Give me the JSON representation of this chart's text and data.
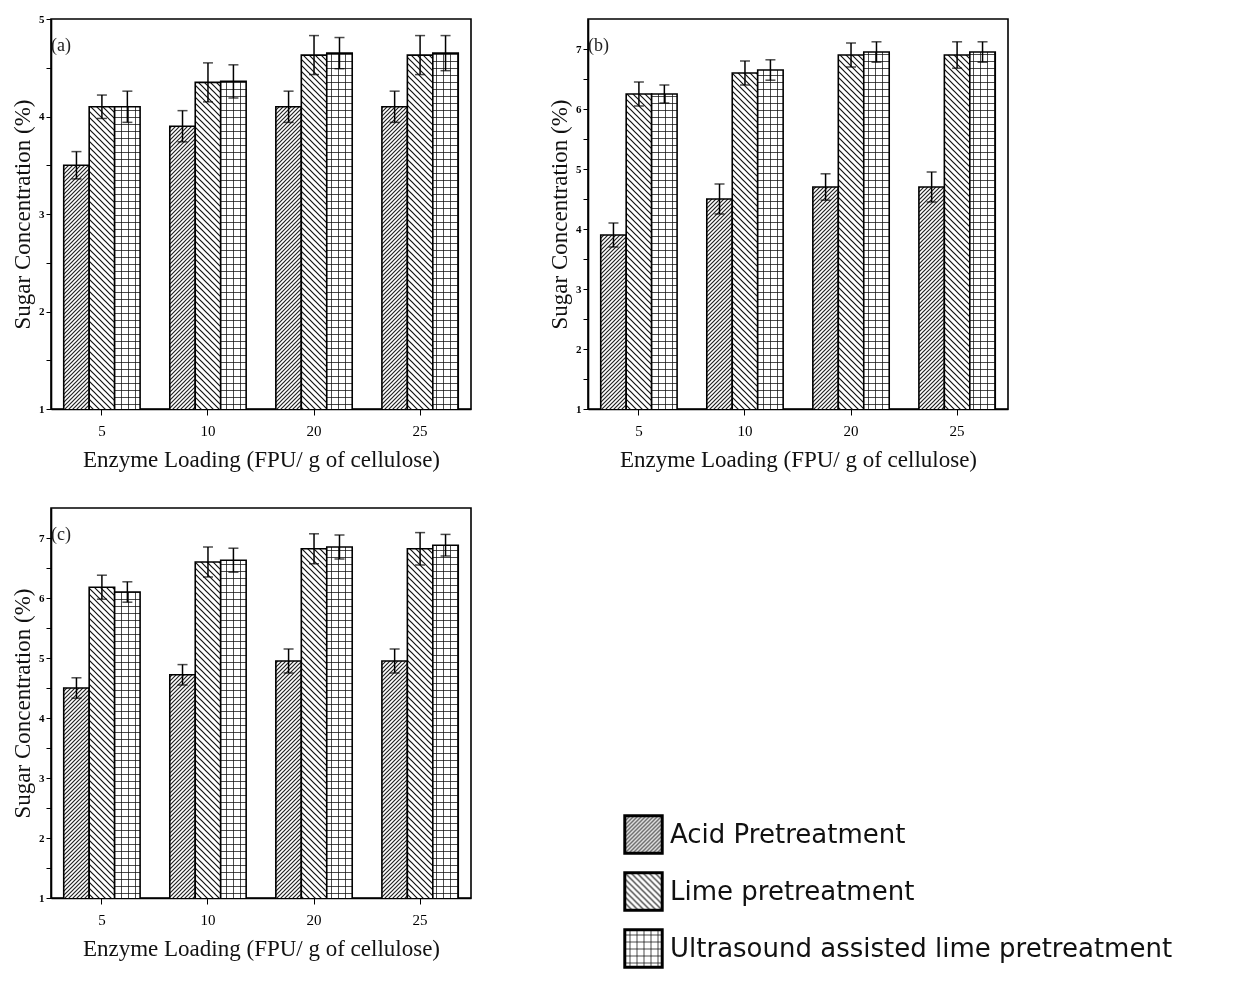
{
  "chart_data": [
    {
      "type": "bar",
      "xlabel": "Enzyme Loading (FPU/ g of cellulose)",
      "ylabel": "Sugar Concentration (%)",
      "annotations": [
        "(a)"
      ],
      "categories": [
        "5",
        "10",
        "20",
        "25"
      ],
      "ylim": [
        1,
        5
      ],
      "yticks": [
        1,
        {
          "value": 1.5,
          "label": null
        },
        2,
        {
          "value": 2.5,
          "label": null
        },
        3,
        {
          "value": 3.5,
          "label": null
        },
        4,
        {
          "value": 4.5,
          "label": null
        },
        5
      ],
      "legend": "bottom right",
      "series": [
        {
          "name": "Acid Pretreatment",
          "values": [
            3.5,
            3.9,
            4.1,
            4.1
          ],
          "errors": [
            0.14,
            0.16,
            0.16,
            0.16
          ]
        },
        {
          "name": "Lime pretreatment",
          "values": [
            4.1,
            4.35,
            4.63,
            4.63
          ],
          "errors": [
            0.12,
            0.2,
            0.2,
            0.2
          ]
        },
        {
          "name": "Ultrasound assisted lime pretreatment",
          "values": [
            4.1,
            4.36,
            4.65,
            4.65
          ],
          "errors": [
            0.16,
            0.17,
            0.16,
            0.18
          ]
        }
      ]
    },
    {
      "type": "bar",
      "xlabel": "Enzyme Loading (FPU/ g of cellulose)",
      "ylabel": "Sugar Concentration (%)",
      "annotations": [
        "(b)"
      ],
      "categories": [
        "5",
        "10",
        "20",
        "25"
      ],
      "ylim": [
        1,
        7.5
      ],
      "yticks": [
        1,
        {
          "value": 1.5,
          "label": null
        },
        2,
        {
          "value": 2.5,
          "label": null
        },
        3,
        {
          "value": 3.5,
          "label": null
        },
        4,
        {
          "value": 4.5,
          "label": null
        },
        5,
        {
          "value": 5.5,
          "label": null
        },
        6,
        {
          "value": 6.5,
          "label": null
        },
        7
      ],
      "legend": "bottom right",
      "series": [
        {
          "name": "Acid Pretreatment",
          "values": [
            3.9,
            4.5,
            4.7,
            4.7
          ],
          "errors": [
            0.2,
            0.25,
            0.22,
            0.25
          ]
        },
        {
          "name": "Lime pretreatment",
          "values": [
            6.25,
            6.6,
            6.9,
            6.9
          ],
          "errors": [
            0.2,
            0.2,
            0.2,
            0.22
          ]
        },
        {
          "name": "Ultrasound assisted lime pretreatment",
          "values": [
            6.25,
            6.65,
            6.95,
            6.95
          ],
          "errors": [
            0.15,
            0.17,
            0.17,
            0.17
          ]
        }
      ]
    },
    {
      "type": "bar",
      "xlabel": "Enzyme Loading (FPU/ g of cellulose)",
      "ylabel": "Sugar Concentration (%)",
      "annotations": [
        "(c)"
      ],
      "categories": [
        "5",
        "10",
        "20",
        "25"
      ],
      "ylim": [
        1,
        7.5
      ],
      "yticks": [
        1,
        {
          "value": 1.5,
          "label": null
        },
        2,
        {
          "value": 2.5,
          "label": null
        },
        3,
        {
          "value": 3.5,
          "label": null
        },
        4,
        {
          "value": 4.5,
          "label": null
        },
        5,
        {
          "value": 5.5,
          "label": null
        },
        6,
        {
          "value": 6.5,
          "label": null
        },
        7
      ],
      "legend": "bottom right",
      "series": [
        {
          "name": "Acid Pretreatment",
          "values": [
            4.5,
            4.72,
            4.95,
            4.95
          ],
          "errors": [
            0.17,
            0.17,
            0.2,
            0.2
          ]
        },
        {
          "name": "Lime pretreatment",
          "values": [
            6.18,
            6.6,
            6.82,
            6.82
          ],
          "errors": [
            0.2,
            0.25,
            0.25,
            0.27
          ]
        },
        {
          "name": "Ultrasound assisted lime pretreatment",
          "values": [
            6.1,
            6.63,
            6.85,
            6.88
          ],
          "errors": [
            0.17,
            0.2,
            0.2,
            0.18
          ]
        }
      ]
    }
  ]
}
